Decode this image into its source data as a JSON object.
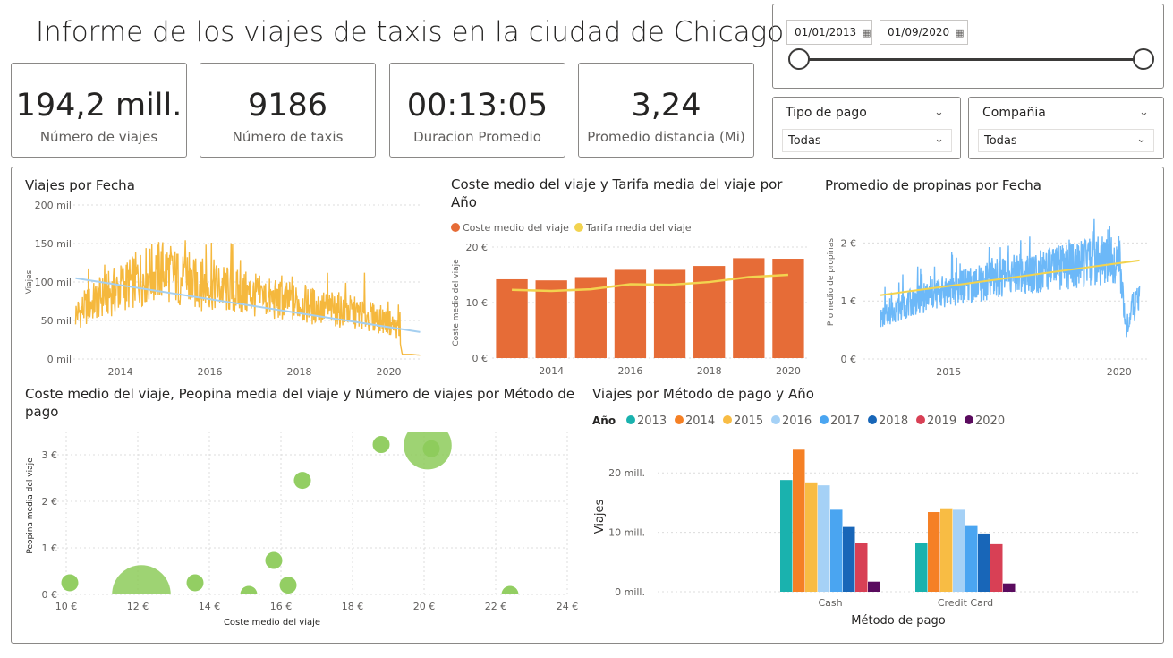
{
  "header": {
    "title": "Informe de los viajes de taxis en la ciudad de Chicago"
  },
  "kpis": [
    {
      "value": "194,2 mill.",
      "label": "Número de viajes"
    },
    {
      "value": "9186",
      "label": "Número de taxis"
    },
    {
      "value": "00:13:05",
      "label": "Duracion Promedio"
    },
    {
      "value": "3,24",
      "label": "Promedio distancia (Mi)"
    }
  ],
  "date_slicer": {
    "start": "01/01/2013",
    "end": "01/09/2020",
    "calendar_icon": "calendar-icon"
  },
  "filters": {
    "payment": {
      "label": "Tipo de pago",
      "selected": "Todas"
    },
    "company": {
      "label": "Compañia",
      "selected": "Todas"
    }
  },
  "colors": {
    "trips_line": "#F5B83D",
    "trend_line": "#A5CFF0",
    "bar_orange": "#E66C37",
    "fare_line": "#F2D34F",
    "tips_line": "#6CB8F8",
    "bubble": "#8DCB5B",
    "years": [
      "#1AB2AE",
      "#F58025",
      "#F8BC44",
      "#A5D1F6",
      "#4AA5F1",
      "#1866B8",
      "#D84055",
      "#5A0B5E"
    ]
  },
  "chart_data": [
    {
      "id": "trips_by_date",
      "type": "line",
      "title": "Viajes por Fecha",
      "ylabel": "Viajes",
      "xlabel": "",
      "x_ticks": [
        "2014",
        "2016",
        "2018",
        "2020"
      ],
      "y_ticks": [
        "0 mil",
        "50 mil",
        "100 mil",
        "150 mil",
        "200 mil"
      ],
      "ylim": [
        0,
        200000
      ],
      "xlim": [
        2012.95,
        2020.75
      ],
      "series": [
        {
          "x": [
            2013.0,
            2013.5,
            2014.0,
            2014.5,
            2015.0,
            2015.5,
            2016.0,
            2016.5,
            2017.0,
            2017.5,
            2018.0,
            2018.5,
            2019.0,
            2019.5,
            2020.0,
            2020.2,
            2020.3,
            2020.5,
            2020.7
          ],
          "y": [
            60000,
            80000,
            95000,
            110000,
            120000,
            100000,
            100000,
            90000,
            85000,
            78000,
            75000,
            68000,
            65000,
            58000,
            50000,
            40000,
            6000,
            6000,
            5000
          ]
        }
      ],
      "trend": {
        "x": [
          2013.0,
          2020.7
        ],
        "y": [
          105000,
          35000
        ]
      }
    },
    {
      "id": "cost_fare_by_year",
      "type": "bar",
      "title": "Coste medio del viaje y Tarifa media del viaje por Año",
      "ylabel": "Coste medio del viaje",
      "xlabel": "",
      "categories": [
        "2013",
        "2014",
        "2015",
        "2016",
        "2017",
        "2018",
        "2019",
        "2020"
      ],
      "x_ticks": [
        "2014",
        "2016",
        "2018",
        "2020"
      ],
      "y_ticks": [
        "0 €",
        "10 €",
        "20 €"
      ],
      "ylim": [
        0,
        20
      ],
      "series": [
        {
          "name": "Coste medio del viaje",
          "type": "bar",
          "values": [
            14.2,
            14.0,
            14.6,
            15.9,
            15.9,
            16.6,
            18.0,
            17.9
          ]
        },
        {
          "name": "Tarifa media del viaje",
          "type": "line",
          "values": [
            12.3,
            12.1,
            12.4,
            13.3,
            13.2,
            13.7,
            14.6,
            15.0
          ]
        }
      ]
    },
    {
      "id": "tips_by_date",
      "type": "line",
      "title": "Promedio de propinas por Fecha",
      "ylabel": "Promedio de propinas",
      "xlabel": "",
      "x_ticks": [
        "2015",
        "2020"
      ],
      "y_ticks": [
        "0 €",
        "1 €",
        "2 €"
      ],
      "ylim": [
        0,
        2.5
      ],
      "xlim": [
        2012.5,
        2020.9
      ],
      "series": [
        {
          "x": [
            2013.0,
            2013.5,
            2014.0,
            2014.5,
            2015.0,
            2015.5,
            2016.0,
            2016.5,
            2017.0,
            2017.5,
            2018.0,
            2018.5,
            2019.0,
            2019.5,
            2020.0,
            2020.2,
            2020.4,
            2020.6
          ],
          "y": [
            0.7,
            0.85,
            1.0,
            1.1,
            1.2,
            1.25,
            1.3,
            1.4,
            1.45,
            1.5,
            1.55,
            1.6,
            1.65,
            1.7,
            1.75,
            0.5,
            0.9,
            1.0
          ]
        }
      ],
      "trend": {
        "x": [
          2013.0,
          2020.6
        ],
        "y": [
          1.1,
          1.7
        ]
      }
    },
    {
      "id": "cost_tip_trips_by_payment",
      "type": "scatter",
      "title": "Coste medio del viaje, Peopina media del viaje y Número de viajes por Método de pago",
      "xlabel": "Coste medio del viaje",
      "ylabel": "Peopina media del viaje",
      "x_ticks": [
        "10 €",
        "12 €",
        "14 €",
        "16 €",
        "18 €",
        "20 €",
        "22 €",
        "24 €"
      ],
      "y_ticks": [
        "0 €",
        "1 €",
        "2 €",
        "3 €"
      ],
      "xlim": [
        10,
        24
      ],
      "ylim": [
        0,
        3.5
      ],
      "points": [
        {
          "x": 10.1,
          "y": 0.25,
          "size": 1
        },
        {
          "x": 12.1,
          "y": 0.0,
          "size": 9
        },
        {
          "x": 13.6,
          "y": 0.25,
          "size": 1
        },
        {
          "x": 15.1,
          "y": 0.0,
          "size": 1
        },
        {
          "x": 15.8,
          "y": 0.73,
          "size": 1
        },
        {
          "x": 16.2,
          "y": 0.2,
          "size": 1
        },
        {
          "x": 16.6,
          "y": 2.45,
          "size": 1
        },
        {
          "x": 18.8,
          "y": 3.22,
          "size": 1
        },
        {
          "x": 20.1,
          "y": 3.2,
          "size": 6
        },
        {
          "x": 20.2,
          "y": 3.13,
          "size": 1
        },
        {
          "x": 22.4,
          "y": 0.0,
          "size": 1
        }
      ]
    },
    {
      "id": "trips_by_payment_year",
      "type": "bar",
      "title": "Viajes por Método de pago y Año",
      "xlabel": "Método de pago",
      "ylabel": "Viajes",
      "legend_title": "Año",
      "legend_position": "top-left",
      "categories": [
        "Cash",
        "Credit Card"
      ],
      "y_ticks": [
        "0 mill.",
        "10 mill.",
        "20 mill."
      ],
      "ylim": [
        0,
        25
      ],
      "series": [
        {
          "name": "2013",
          "values": [
            18.8,
            8.2
          ]
        },
        {
          "name": "2014",
          "values": [
            23.9,
            13.4
          ]
        },
        {
          "name": "2015",
          "values": [
            18.4,
            13.9
          ]
        },
        {
          "name": "2016",
          "values": [
            17.9,
            13.8
          ]
        },
        {
          "name": "2017",
          "values": [
            13.8,
            11.2
          ]
        },
        {
          "name": "2018",
          "values": [
            10.9,
            9.8
          ]
        },
        {
          "name": "2019",
          "values": [
            8.2,
            8.0
          ]
        },
        {
          "name": "2020",
          "values": [
            1.7,
            1.4
          ]
        }
      ]
    }
  ]
}
